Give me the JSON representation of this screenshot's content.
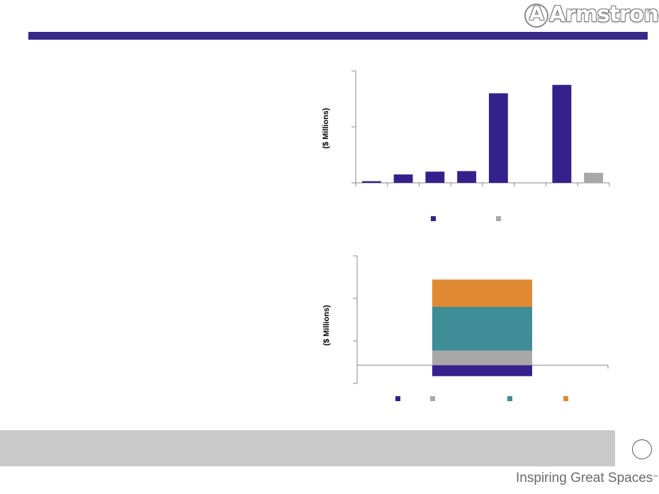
{
  "brand": {
    "logo_text": "Armstrong",
    "logo_letter": "A",
    "registered_mark": "®",
    "tagline": "Inspiring Great Spaces",
    "tagline_mark": "™",
    "rule_color": "#3a2a88"
  },
  "chart_data": [
    {
      "type": "bar",
      "ylabel": "($ Millions)",
      "n_categories": 8,
      "values": [
        3,
        15,
        20,
        21,
        160,
        0,
        175,
        18
      ],
      "bar_colors": [
        "#35218c",
        "#35218c",
        "#35218c",
        "#35218c",
        "#35218c",
        "#35218c",
        "#35218c",
        "#a8a8a8"
      ],
      "ylim": [
        0,
        200
      ],
      "ytick_count": 3,
      "legend_colors": [
        "#35218c",
        "#a8a8a8"
      ],
      "legend_position": "bottom"
    },
    {
      "type": "bar",
      "stacked": true,
      "ylabel": "($ Millions)",
      "segments": [
        {
          "low": -3,
          "high": 0,
          "color": "#35218c"
        },
        {
          "low": 0,
          "high": 4,
          "color": "#a8a8a8"
        },
        {
          "low": 4,
          "high": 16,
          "color": "#3f8d97"
        },
        {
          "low": 16,
          "high": 23.5,
          "color": "#e08933"
        }
      ],
      "ylim": [
        -5,
        30
      ],
      "ytick_count": 4,
      "baseline": 0,
      "legend_colors": [
        "#35218c",
        "#a8a8a8",
        "#3f8d97",
        "#e08933"
      ],
      "legend_position": "bottom"
    }
  ]
}
